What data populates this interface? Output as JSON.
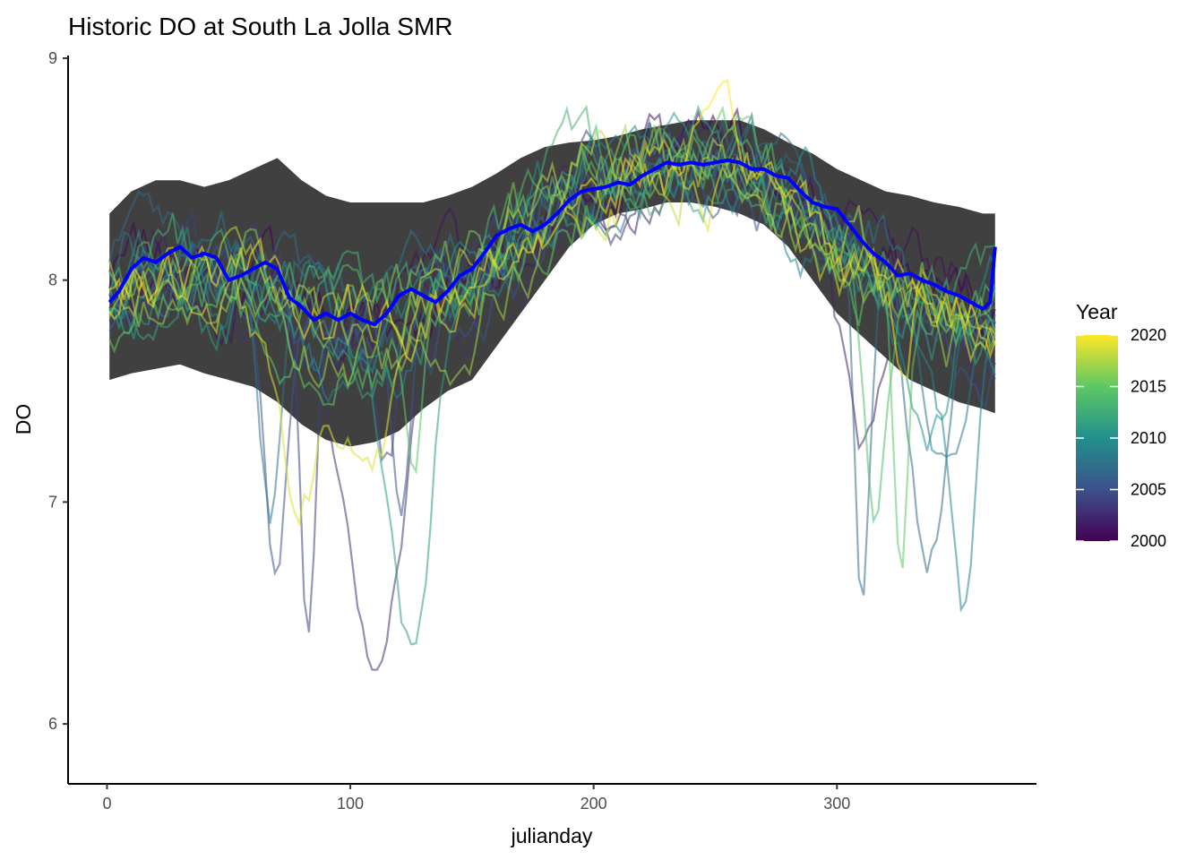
{
  "chart_data": {
    "type": "line",
    "title": "Historic DO at South La Jolla SMR",
    "xlabel": "julianday",
    "ylabel": "DO",
    "xlim": [
      -16,
      382
    ],
    "ylim": [
      5.73,
      9.02
    ],
    "x_ticks": [
      0,
      100,
      200,
      300
    ],
    "y_ticks": [
      6,
      7,
      8,
      9
    ],
    "grid": false,
    "legend": {
      "title": "Year",
      "placement": "right",
      "type": "colorbar",
      "range": [
        2000,
        2020
      ],
      "ticks": [
        2000,
        2005,
        2010,
        2015,
        2020
      ],
      "colors": [
        "#440154",
        "#3b528b",
        "#21908c",
        "#5dc863",
        "#fde725"
      ]
    },
    "ribbon": {
      "color": "#404040",
      "x": [
        1,
        10,
        20,
        30,
        40,
        50,
        60,
        70,
        80,
        90,
        100,
        110,
        120,
        130,
        140,
        150,
        160,
        170,
        180,
        190,
        200,
        210,
        220,
        230,
        240,
        250,
        260,
        270,
        280,
        290,
        300,
        310,
        320,
        330,
        340,
        350,
        360,
        365
      ],
      "lower": [
        7.55,
        7.58,
        7.6,
        7.62,
        7.58,
        7.55,
        7.52,
        7.45,
        7.35,
        7.28,
        7.25,
        7.27,
        7.32,
        7.42,
        7.5,
        7.55,
        7.7,
        7.85,
        8.0,
        8.15,
        8.25,
        8.3,
        8.32,
        8.35,
        8.35,
        8.33,
        8.3,
        8.25,
        8.15,
        8.0,
        7.85,
        7.75,
        7.65,
        7.55,
        7.5,
        7.45,
        7.42,
        7.4
      ],
      "upper": [
        8.3,
        8.4,
        8.45,
        8.45,
        8.42,
        8.45,
        8.5,
        8.55,
        8.45,
        8.38,
        8.35,
        8.35,
        8.35,
        8.35,
        8.38,
        8.42,
        8.48,
        8.55,
        8.6,
        8.62,
        8.63,
        8.65,
        8.68,
        8.7,
        8.72,
        8.72,
        8.72,
        8.68,
        8.62,
        8.57,
        8.5,
        8.45,
        8.4,
        8.38,
        8.35,
        8.33,
        8.3,
        8.3
      ]
    },
    "mean_line": {
      "color": "#0000ff",
      "x": [
        1,
        5,
        10,
        15,
        20,
        25,
        30,
        35,
        40,
        45,
        50,
        55,
        60,
        65,
        70,
        75,
        80,
        85,
        90,
        95,
        100,
        105,
        110,
        115,
        120,
        125,
        130,
        135,
        140,
        145,
        150,
        155,
        160,
        165,
        170,
        175,
        180,
        185,
        190,
        195,
        200,
        205,
        210,
        215,
        220,
        225,
        230,
        235,
        240,
        245,
        250,
        255,
        260,
        265,
        270,
        275,
        280,
        285,
        290,
        295,
        300,
        305,
        310,
        315,
        320,
        325,
        330,
        335,
        340,
        345,
        350,
        355,
        360,
        363,
        365
      ],
      "y": [
        7.9,
        7.95,
        8.05,
        8.1,
        8.08,
        8.12,
        8.15,
        8.1,
        8.12,
        8.1,
        8.0,
        8.02,
        8.05,
        8.08,
        8.05,
        7.92,
        7.88,
        7.82,
        7.85,
        7.82,
        7.85,
        7.82,
        7.8,
        7.85,
        7.93,
        7.96,
        7.93,
        7.9,
        7.95,
        8.02,
        8.05,
        8.12,
        8.2,
        8.23,
        8.25,
        8.22,
        8.25,
        8.3,
        8.36,
        8.4,
        8.41,
        8.42,
        8.44,
        8.43,
        8.47,
        8.5,
        8.53,
        8.52,
        8.53,
        8.52,
        8.53,
        8.54,
        8.53,
        8.5,
        8.5,
        8.47,
        8.46,
        8.4,
        8.35,
        8.33,
        8.32,
        8.25,
        8.18,
        8.12,
        8.08,
        8.02,
        8.03,
        8.0,
        7.98,
        7.95,
        7.93,
        7.9,
        7.87,
        7.9,
        8.15
      ]
    },
    "year_lines": {
      "opacity": 0.55,
      "years": [
        2000,
        2001,
        2002,
        2003,
        2004,
        2005,
        2006,
        2007,
        2008,
        2009,
        2010,
        2011,
        2012,
        2013,
        2014,
        2015,
        2016,
        2017,
        2018,
        2019,
        2020
      ]
    }
  }
}
